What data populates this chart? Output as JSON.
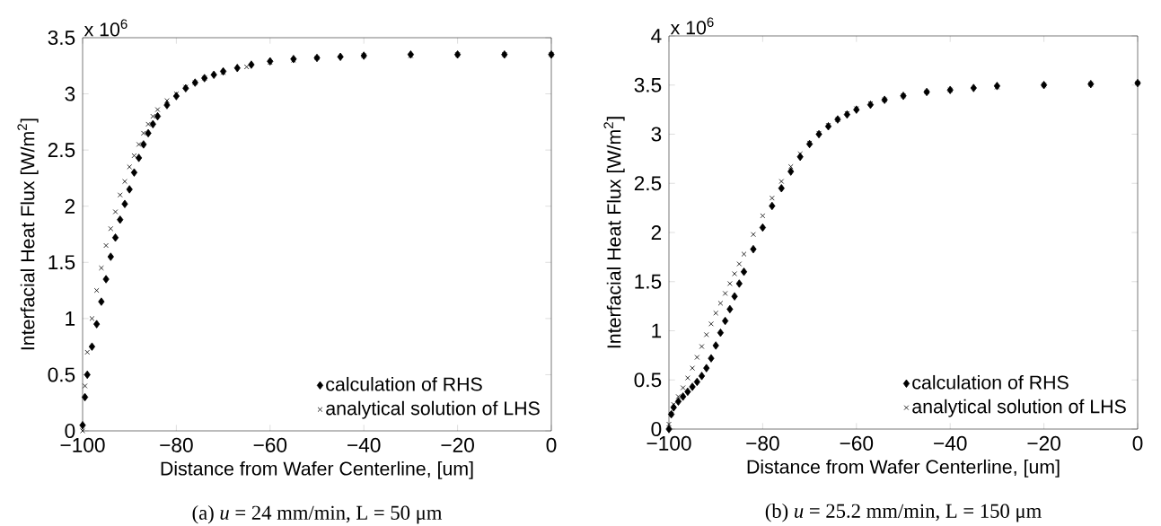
{
  "chart_data": [
    {
      "type": "scatter",
      "xlabel": "Distance from Wafer Centerline, [um]",
      "ylabel": "Interfacial Heat Flux [W/m$^{2}$]",
      "annotations": [
        "x 10$^{6}$",
        "(a) *u* = 24 mm/min, L = 50 μm"
      ],
      "xlim": [
        -100,
        0
      ],
      "ylim": [
        0,
        3.5
      ],
      "xticks": [
        {
          "value": -100,
          "label": "−100"
        },
        {
          "value": -80,
          "label": "−80"
        },
        {
          "value": -60,
          "label": "−60"
        },
        {
          "value": -40,
          "label": "−40"
        },
        {
          "value": -20,
          "label": "−20"
        },
        0
      ],
      "yticks": [
        0,
        0.5,
        1,
        1.5,
        2,
        2.5,
        3,
        3.5
      ],
      "legend": "bottom right",
      "grid": false,
      "series": [
        {
          "name": "calculation of RHS",
          "color": "#000000",
          "marker": "diamond",
          "x": [
            -100,
            -99.5,
            -99,
            -98,
            -97,
            -96,
            -95,
            -94,
            -93,
            -92,
            -91,
            -90,
            -89,
            -88,
            -87,
            -86,
            -85,
            -84,
            -82,
            -80,
            -78,
            -76,
            -74,
            -72,
            -70,
            -67,
            -64,
            -60,
            -55,
            -50,
            -45,
            -40,
            -30,
            -20,
            -10,
            0
          ],
          "values": [
            0.05,
            0.3,
            0.5,
            0.75,
            0.95,
            1.15,
            1.35,
            1.55,
            1.72,
            1.88,
            2.02,
            2.15,
            2.3,
            2.43,
            2.55,
            2.65,
            2.73,
            2.8,
            2.9,
            2.98,
            3.05,
            3.1,
            3.14,
            3.17,
            3.2,
            3.23,
            3.26,
            3.29,
            3.31,
            3.32,
            3.33,
            3.34,
            3.35,
            3.35,
            3.35,
            3.35
          ]
        },
        {
          "name": "analytical solution of LHS",
          "color": "#000000",
          "marker": "cross",
          "x": [
            -100,
            -99.5,
            -99,
            -98,
            -97,
            -96,
            -95,
            -94,
            -93,
            -92,
            -91,
            -90,
            -89,
            -88,
            -87,
            -86,
            -85,
            -84,
            -82,
            -80,
            -78,
            -76,
            -74,
            -70,
            -65,
            -60,
            -55,
            -50,
            -40,
            -30,
            -20,
            -10,
            0
          ],
          "values": [
            0.0,
            0.4,
            0.7,
            1.0,
            1.25,
            1.45,
            1.65,
            1.8,
            1.95,
            2.1,
            2.22,
            2.35,
            2.45,
            2.55,
            2.65,
            2.73,
            2.8,
            2.86,
            2.94,
            3.0,
            3.06,
            3.1,
            3.14,
            3.19,
            3.24,
            3.28,
            3.3,
            3.32,
            3.34,
            3.34,
            3.35,
            3.35,
            3.35
          ]
        }
      ]
    },
    {
      "type": "scatter",
      "xlabel": "Distance from Wafer Centerline, [um]",
      "ylabel": "Interfacial Heat Flux [W/m$^{2}$]",
      "annotations": [
        "x 10$^{6}$",
        "(b) *u* = 25.2 mm/min, L = 150 μm"
      ],
      "xlim": [
        -100,
        0
      ],
      "ylim": [
        0,
        4
      ],
      "xticks": [
        {
          "value": -100,
          "label": "−100"
        },
        {
          "value": -80,
          "label": "−80"
        },
        {
          "value": -60,
          "label": "−60"
        },
        {
          "value": -40,
          "label": "−40"
        },
        {
          "value": -20,
          "label": "−20"
        },
        0
      ],
      "yticks": [
        0,
        0.5,
        1,
        1.5,
        2,
        2.5,
        3,
        3.5,
        4
      ],
      "legend": "bottom right",
      "grid": false,
      "series": [
        {
          "name": "calculation of RHS",
          "color": "#000000",
          "marker": "diamond",
          "x": [
            -100,
            -99.5,
            -99,
            -98,
            -97,
            -96,
            -95,
            -94,
            -93,
            -92,
            -91,
            -90,
            -89,
            -88,
            -87,
            -86,
            -85,
            -84,
            -82,
            -80,
            -78,
            -76,
            -74,
            -72,
            -70,
            -68,
            -66,
            -64,
            -62,
            -60,
            -57,
            -54,
            -50,
            -45,
            -40,
            -35,
            -30,
            -20,
            -10,
            0
          ],
          "values": [
            0.0,
            0.15,
            0.22,
            0.28,
            0.33,
            0.38,
            0.43,
            0.48,
            0.54,
            0.62,
            0.72,
            0.85,
            0.98,
            1.1,
            1.22,
            1.35,
            1.48,
            1.6,
            1.83,
            2.05,
            2.27,
            2.45,
            2.62,
            2.77,
            2.9,
            3.0,
            3.08,
            3.15,
            3.2,
            3.25,
            3.3,
            3.35,
            3.39,
            3.43,
            3.45,
            3.47,
            3.49,
            3.5,
            3.51,
            3.52
          ]
        },
        {
          "name": "analytical solution of LHS",
          "color": "#000000",
          "marker": "cross",
          "x": [
            -100,
            -99.5,
            -99,
            -98,
            -97,
            -96,
            -95,
            -94,
            -93,
            -92,
            -91,
            -90,
            -89,
            -88,
            -87,
            -86,
            -85,
            -84,
            -82,
            -80,
            -78,
            -76,
            -74,
            -72,
            -70,
            -68,
            -66,
            -64,
            -62,
            -60,
            -57,
            -54,
            -50,
            -45,
            -40,
            -30,
            -20,
            -10,
            0
          ],
          "values": [
            0.05,
            0.15,
            0.25,
            0.33,
            0.42,
            0.52,
            0.62,
            0.73,
            0.84,
            0.96,
            1.07,
            1.18,
            1.28,
            1.38,
            1.48,
            1.58,
            1.68,
            1.78,
            1.98,
            2.17,
            2.35,
            2.52,
            2.67,
            2.8,
            2.91,
            3.01,
            3.09,
            3.15,
            3.21,
            3.26,
            3.31,
            3.35,
            3.39,
            3.43,
            3.45,
            3.48,
            3.5,
            3.51,
            3.52
          ]
        }
      ]
    }
  ]
}
